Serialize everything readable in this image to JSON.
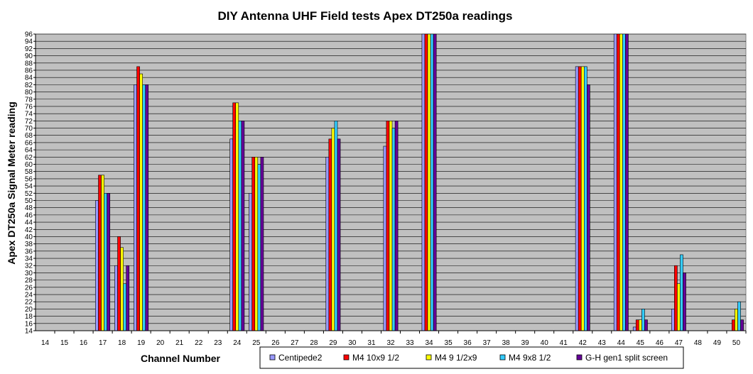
{
  "chart_data": {
    "type": "bar",
    "title": "DIY Antenna UHF Field tests Apex DT250a readings",
    "xlabel": "Channel Number",
    "ylabel": "Apex DT250a Signal Meter reading",
    "ylim": [
      14,
      96
    ],
    "ytick_step": 2,
    "grid": true,
    "legend_position": "bottom-right",
    "plot_background": "#c0c0c0",
    "categories": [
      "14",
      "15",
      "16",
      "17",
      "18",
      "19",
      "20",
      "21",
      "22",
      "23",
      "24",
      "25",
      "26",
      "27",
      "28",
      "29",
      "30",
      "31",
      "32",
      "33",
      "34",
      "35",
      "36",
      "37",
      "38",
      "39",
      "40",
      "41",
      "42",
      "43",
      "44",
      "45",
      "46",
      "47",
      "48",
      "49",
      "50"
    ],
    "series": [
      {
        "name": "Centipede2",
        "color": "#9999ff",
        "values": [
          null,
          null,
          null,
          50,
          32,
          82,
          null,
          null,
          null,
          null,
          67,
          52,
          null,
          null,
          null,
          62,
          null,
          null,
          65,
          null,
          100,
          null,
          null,
          null,
          null,
          null,
          null,
          null,
          87,
          null,
          100,
          15,
          null,
          20,
          null,
          null,
          null
        ]
      },
      {
        "name": "M4 10x9 1/2",
        "color": "#ff0000",
        "values": [
          null,
          null,
          null,
          57,
          40,
          87,
          null,
          null,
          null,
          null,
          77,
          62,
          null,
          null,
          null,
          67,
          null,
          null,
          72,
          null,
          100,
          null,
          null,
          null,
          null,
          null,
          null,
          null,
          87,
          null,
          100,
          17,
          null,
          32,
          null,
          null,
          17
        ]
      },
      {
        "name": "M4 9 1/2x9",
        "color": "#ffff00",
        "values": [
          null,
          null,
          null,
          57,
          37,
          85,
          null,
          null,
          null,
          null,
          77,
          62,
          null,
          null,
          null,
          70,
          null,
          null,
          72,
          null,
          100,
          null,
          null,
          null,
          null,
          null,
          null,
          null,
          87,
          null,
          100,
          17,
          null,
          27,
          null,
          null,
          20
        ]
      },
      {
        "name": "M4 9x8 1/2",
        "color": "#33ccff",
        "values": [
          null,
          null,
          null,
          52,
          27,
          82,
          null,
          null,
          null,
          null,
          72,
          60,
          null,
          null,
          null,
          72,
          null,
          null,
          70,
          null,
          100,
          null,
          null,
          null,
          null,
          null,
          null,
          null,
          87,
          null,
          100,
          20,
          null,
          35,
          null,
          null,
          22
        ]
      },
      {
        "name": "G-H gen1 split screen",
        "color": "#660099",
        "values": [
          null,
          null,
          null,
          52,
          32,
          82,
          null,
          null,
          null,
          null,
          72,
          62,
          null,
          null,
          null,
          67,
          null,
          null,
          72,
          null,
          100,
          null,
          null,
          null,
          null,
          null,
          null,
          null,
          82,
          null,
          100,
          17,
          null,
          30,
          null,
          null,
          17
        ]
      }
    ]
  }
}
